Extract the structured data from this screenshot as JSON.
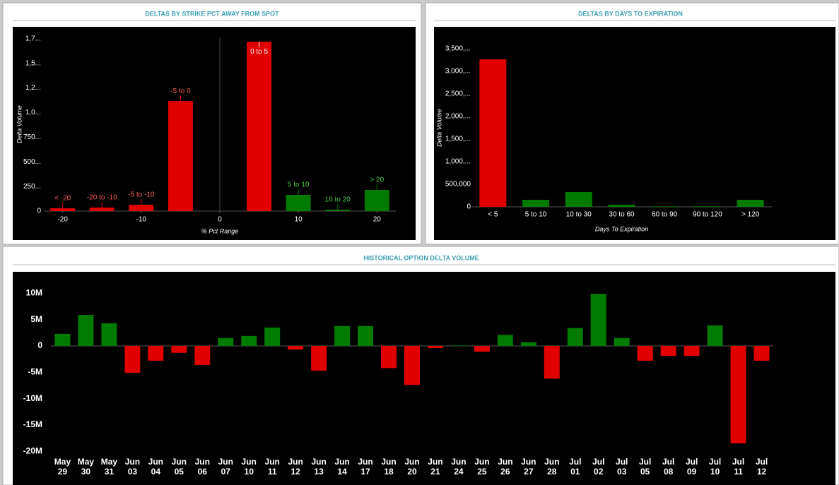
{
  "chart_data": [
    {
      "type": "bar",
      "title": "DELTAS BY STRIKE PCT AWAY FROM SPOT",
      "x_label": "% Pct Range",
      "y_label": "Delta Volume",
      "categories": [
        "< -20",
        "-20 to -10",
        "-5 to -10",
        "-5 to 0",
        "0 to 5",
        "5 to 10",
        "10 to 20",
        "> 20"
      ],
      "x": [
        -20,
        -15,
        -10,
        -5,
        5,
        10,
        15,
        20
      ],
      "values": [
        29000,
        36000,
        64000,
        1117000,
        1719000,
        165000,
        14000,
        215000
      ],
      "colors": [
        "#e00000",
        "#e00000",
        "#e00000",
        "#e00000",
        "#e00000",
        "#007a00",
        "#007a00",
        "#007a00"
      ],
      "xlim": [
        -22.4,
        22.4
      ],
      "xticks": [
        -20,
        -10,
        0,
        10,
        20
      ],
      "ylim": [
        0,
        1770000
      ],
      "yticks": [
        0,
        {
          "value": 250000,
          "label": "250..."
        },
        {
          "value": 500000,
          "label": "500..."
        },
        {
          "value": 750000,
          "label": "750..."
        },
        {
          "value": 1000000,
          "label": "1,0..."
        },
        {
          "value": 1250000,
          "label": "1,2..."
        },
        {
          "value": 1500000,
          "label": "1,5..."
        },
        {
          "value": 1750000,
          "label": "1,7..."
        }
      ]
    },
    {
      "type": "bar",
      "title": "DELTAS BY DAYS TO EXPIRATION",
      "x_label": "Days To Expiration",
      "y_label": "Delta Volume",
      "categories": [
        "< 5",
        "5 to 10",
        "10 to 30",
        "30 to 60",
        "60 to 90",
        "90 to 120",
        "> 120"
      ],
      "values": [
        3266000,
        156000,
        328000,
        47000,
        10000,
        12000,
        156000
      ],
      "colors": [
        "#e00000",
        "#007a00",
        "#007a00",
        "#007a00",
        "#007a00",
        "#007a00",
        "#007a00"
      ],
      "ylim": [
        0,
        3720000
      ],
      "yticks": [
        0,
        {
          "value": 500000,
          "label": "500,000"
        },
        {
          "value": 1000000,
          "label": "1,000,..."
        },
        {
          "value": 1500000,
          "label": "1,500,..."
        },
        {
          "value": 2000000,
          "label": "2,000,..."
        },
        {
          "value": 2500000,
          "label": "2,500,..."
        },
        {
          "value": 3000000,
          "label": "3,000,..."
        },
        {
          "value": 3500000,
          "label": "3,500,..."
        }
      ]
    },
    {
      "type": "bar",
      "title": "HISTORICAL OPTION DELTA VOLUME",
      "categories": [
        "May 29",
        "May 30",
        "May 31",
        "Jun 03",
        "Jun 04",
        "Jun 05",
        "Jun 06",
        "Jun 07",
        "Jun 10",
        "Jun 11",
        "Jun 12",
        "Jun 13",
        "Jun 14",
        "Jun 17",
        "Jun 18",
        "Jun 20",
        "Jun 21",
        "Jun 24",
        "Jun 25",
        "Jun 26",
        "Jun 27",
        "Jun 28",
        "Jul 01",
        "Jul 02",
        "Jul 03",
        "Jul 05",
        "Jul 08",
        "Jul 09",
        "Jul 10",
        "Jul 11",
        "Jul 12"
      ],
      "values": [
        2300000,
        5900000,
        4300000,
        -5100000,
        -2800000,
        -1300000,
        -3600000,
        1500000,
        1900000,
        3500000,
        -700000,
        -4700000,
        3800000,
        3800000,
        -4200000,
        -7400000,
        -400000,
        100000,
        -1100000,
        2100000,
        700000,
        -6200000,
        3400000,
        9900000,
        1500000,
        -2800000,
        -1900000,
        -1900000,
        3900000,
        -18500000,
        -2800000
      ],
      "positive_color": "#007a00",
      "negative_color": "#e00000",
      "ylim": [
        -20100000,
        11400000
      ],
      "yticks": [
        {
          "value": -20000000,
          "label": "-20M"
        },
        {
          "value": -15000000,
          "label": "-15M"
        },
        {
          "value": -10000000,
          "label": "-10M"
        },
        {
          "value": -5000000,
          "label": "-5M"
        },
        0,
        {
          "value": 5000000,
          "label": "5M"
        },
        {
          "value": 10000000,
          "label": "10M"
        }
      ]
    }
  ]
}
